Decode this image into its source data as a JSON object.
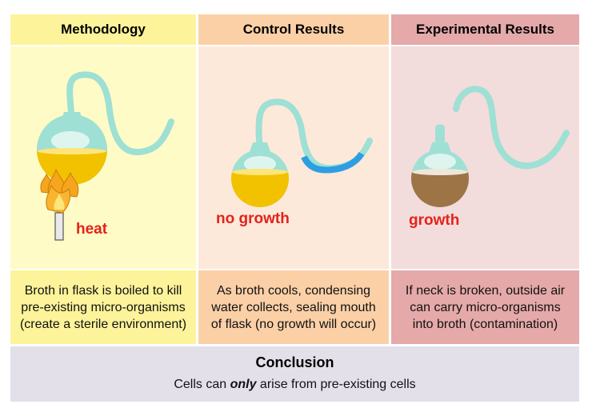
{
  "columns": [
    {
      "header": "Methodology",
      "label": "heat",
      "description": [
        "Broth in flask is boiled to kill",
        "pre-existing micro-organisms",
        "(create a sterile environment)"
      ],
      "colors": {
        "header_bg": "#fdf39a",
        "panel_bg": "#fefbc7",
        "broth": "#f2c200"
      }
    },
    {
      "header": "Control Results",
      "label": "no growth",
      "description": [
        "As broth cools, condensing",
        "water collects, sealing mouth",
        "of flask (no growth will occur)"
      ],
      "colors": {
        "header_bg": "#fbd0a7",
        "panel_bg": "#fde9da",
        "broth": "#f2c200",
        "water": "#2e9ee3"
      }
    },
    {
      "header": "Experimental Results",
      "label": "growth",
      "description": [
        "If neck is broken, outside air",
        "can carry micro-organisms",
        "into broth (contamination)"
      ],
      "colors": {
        "header_bg": "#e5a9a9",
        "panel_bg": "#f3dcdc",
        "broth": "#9c7446"
      }
    }
  ],
  "conclusion": {
    "title": "Conclusion",
    "text_before": "Cells can ",
    "text_emphasis": "only",
    "text_after": " arise from pre-existing cells",
    "bg": "#e3e0ea"
  },
  "colors": {
    "flask_glass": "#9ee0d4",
    "flame": "#f7a51e",
    "label_red": "#e3231b"
  }
}
